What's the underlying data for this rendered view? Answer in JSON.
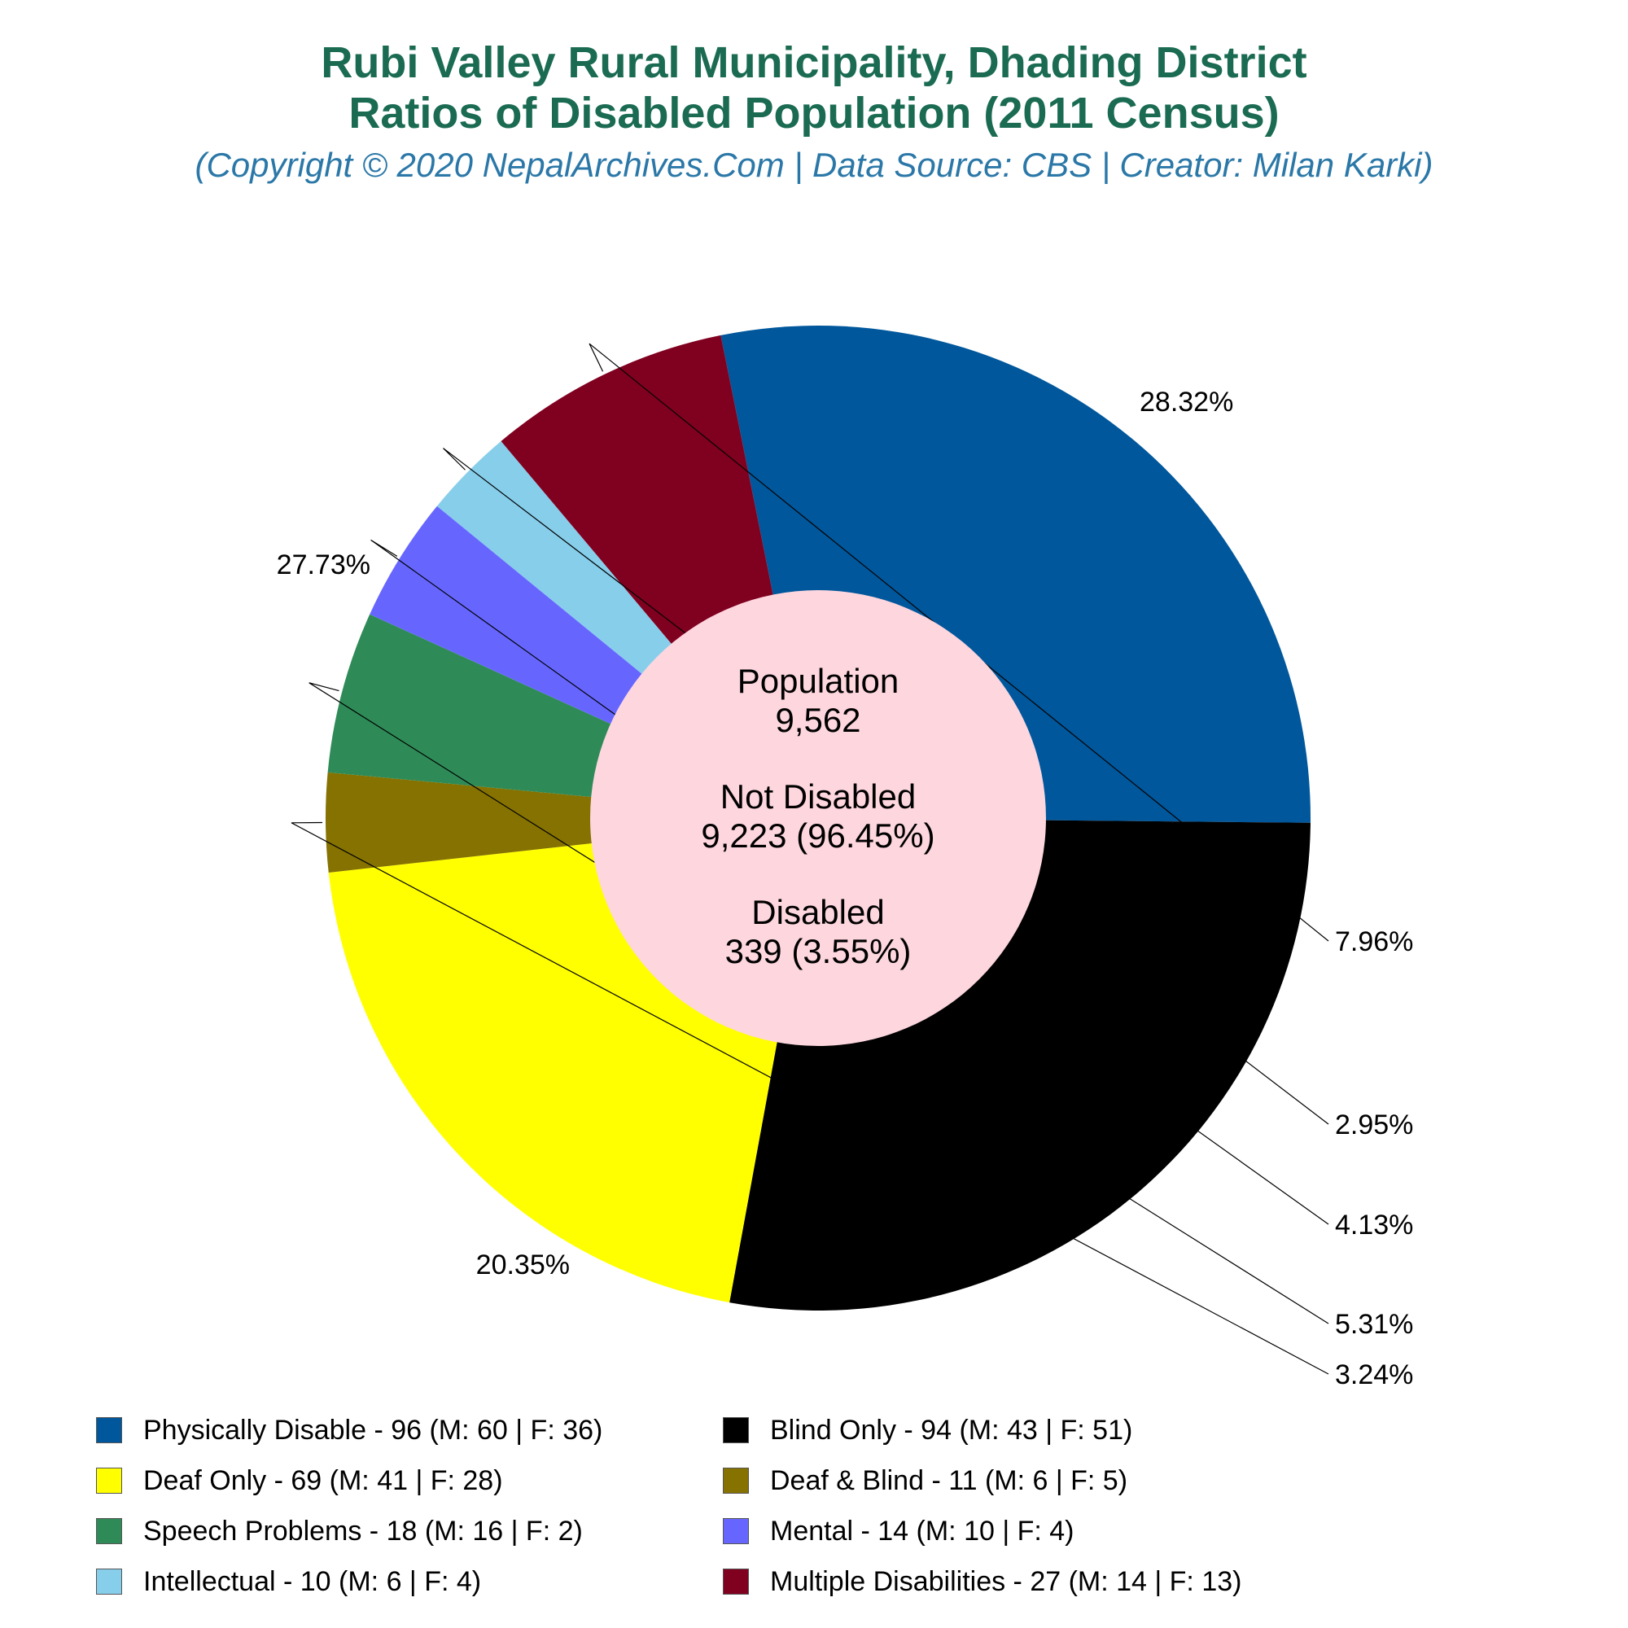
{
  "header": {
    "title_line1": "Rubi Valley Rural Municipality, Dhading District",
    "title_line2": "Ratios of Disabled Population (2011 Census)",
    "subtitle": "(Copyright © 2020 NepalArchives.Com | Data Source: CBS | Creator: Milan Karki)"
  },
  "center": {
    "population_label": "Population",
    "population_value": "9,562",
    "not_disabled_label": "Not Disabled",
    "not_disabled_value": "9,223 (96.45%)",
    "disabled_label": "Disabled",
    "disabled_value": "339 (3.55%)"
  },
  "chart_data": {
    "type": "pie",
    "variant": "donut",
    "categories": [
      "Physically Disable",
      "Blind Only",
      "Deaf Only",
      "Deaf & Blind",
      "Speech Problems",
      "Mental",
      "Intellectual",
      "Multiple Disabilities"
    ],
    "values": [
      96,
      94,
      69,
      11,
      18,
      14,
      10,
      27
    ],
    "percent_labels": [
      "28.32%",
      "27.73%",
      "20.35%",
      "3.24%",
      "5.31%",
      "4.13%",
      "2.95%",
      "7.96%"
    ],
    "colors": [
      "#00579b",
      "#000000",
      "#ffff00",
      "#857200",
      "#2e8b57",
      "#6666ff",
      "#87ceeb",
      "#800020"
    ],
    "legend_position": "bottom",
    "legend": [
      "Physically Disable - 96 (M: 60 | F: 36)",
      "Blind Only - 94 (M: 43 | F: 51)",
      "Deaf Only - 69 (M: 41 | F: 28)",
      "Deaf & Blind - 11 (M: 6 | F: 5)",
      "Speech Problems - 18 (M: 16 | F: 2)",
      "Mental - 14 (M: 10 | F: 4)",
      "Intellectual - 10 (M: 6 | F: 4)",
      "Multiple Disabilities - 27 (M: 14 | F: 13)"
    ]
  }
}
